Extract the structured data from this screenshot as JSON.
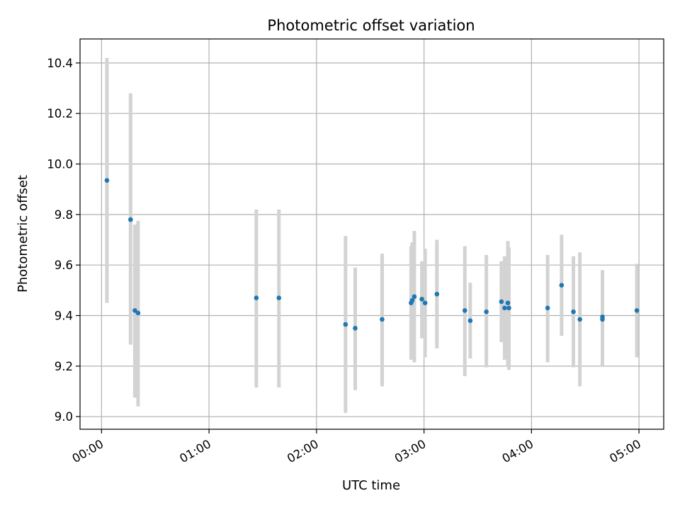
{
  "chart_data": {
    "type": "scatter",
    "title": "Photometric offset variation",
    "xlabel": "UTC time",
    "ylabel": "Photometric offset",
    "x_unit": "hours (UTC)",
    "xlim": [
      -0.2,
      5.23
    ],
    "ylim": [
      8.95,
      10.495
    ],
    "x_ticks": [
      {
        "value": 0,
        "label": "00:00"
      },
      {
        "value": 1,
        "label": "01:00"
      },
      {
        "value": 2,
        "label": "02:00"
      },
      {
        "value": 3,
        "label": "03:00"
      },
      {
        "value": 4,
        "label": "04:00"
      },
      {
        "value": 5,
        "label": "05:00"
      }
    ],
    "y_ticks": [
      {
        "value": 9.0,
        "label": "9.0"
      },
      {
        "value": 9.2,
        "label": "9.2"
      },
      {
        "value": 9.4,
        "label": "9.4"
      },
      {
        "value": 9.6,
        "label": "9.6"
      },
      {
        "value": 9.8,
        "label": "9.8"
      },
      {
        "value": 10.0,
        "label": "10.0"
      },
      {
        "value": 10.2,
        "label": "10.2"
      },
      {
        "value": 10.4,
        "label": "10.4"
      }
    ],
    "grid": true,
    "marker_color": "#1f77b4",
    "errorbar_color": "#d3d3d3",
    "points": [
      {
        "x": 0.05,
        "y": 9.935,
        "low": 9.45,
        "high": 10.42
      },
      {
        "x": 0.27,
        "y": 9.78,
        "low": 9.285,
        "high": 10.28
      },
      {
        "x": 0.31,
        "y": 9.42,
        "low": 9.075,
        "high": 9.76
      },
      {
        "x": 0.34,
        "y": 9.41,
        "low": 9.04,
        "high": 9.775
      },
      {
        "x": 1.44,
        "y": 9.47,
        "low": 9.115,
        "high": 9.82
      },
      {
        "x": 1.65,
        "y": 9.47,
        "low": 9.115,
        "high": 9.82
      },
      {
        "x": 2.27,
        "y": 9.365,
        "low": 9.015,
        "high": 9.715
      },
      {
        "x": 2.36,
        "y": 9.35,
        "low": 9.105,
        "high": 9.59
      },
      {
        "x": 2.61,
        "y": 9.385,
        "low": 9.12,
        "high": 9.645
      },
      {
        "x": 2.88,
        "y": 9.45,
        "low": 9.225,
        "high": 9.675
      },
      {
        "x": 2.89,
        "y": 9.46,
        "low": 9.23,
        "high": 9.69
      },
      {
        "x": 2.91,
        "y": 9.475,
        "low": 9.215,
        "high": 9.735
      },
      {
        "x": 2.98,
        "y": 9.465,
        "low": 9.31,
        "high": 9.615
      },
      {
        "x": 3.01,
        "y": 9.45,
        "low": 9.235,
        "high": 9.665
      },
      {
        "x": 3.12,
        "y": 9.485,
        "low": 9.27,
        "high": 9.7
      },
      {
        "x": 3.38,
        "y": 9.42,
        "low": 9.16,
        "high": 9.675
      },
      {
        "x": 3.43,
        "y": 9.38,
        "low": 9.23,
        "high": 9.53
      },
      {
        "x": 3.58,
        "y": 9.415,
        "low": 9.195,
        "high": 9.64
      },
      {
        "x": 3.72,
        "y": 9.455,
        "low": 9.295,
        "high": 9.615
      },
      {
        "x": 3.75,
        "y": 9.43,
        "low": 9.225,
        "high": 9.635
      },
      {
        "x": 3.78,
        "y": 9.45,
        "low": 9.2,
        "high": 9.695
      },
      {
        "x": 3.79,
        "y": 9.43,
        "low": 9.185,
        "high": 9.67
      },
      {
        "x": 4.15,
        "y": 9.43,
        "low": 9.215,
        "high": 9.64
      },
      {
        "x": 4.28,
        "y": 9.52,
        "low": 9.32,
        "high": 9.72
      },
      {
        "x": 4.39,
        "y": 9.415,
        "low": 9.195,
        "high": 9.635
      },
      {
        "x": 4.45,
        "y": 9.385,
        "low": 9.12,
        "high": 9.65
      },
      {
        "x": 4.66,
        "y": 9.385,
        "low": 9.2,
        "high": 9.575
      },
      {
        "x": 4.66,
        "y": 9.395,
        "low": 9.21,
        "high": 9.58
      },
      {
        "x": 4.98,
        "y": 9.42,
        "low": 9.235,
        "high": 9.605
      }
    ]
  }
}
